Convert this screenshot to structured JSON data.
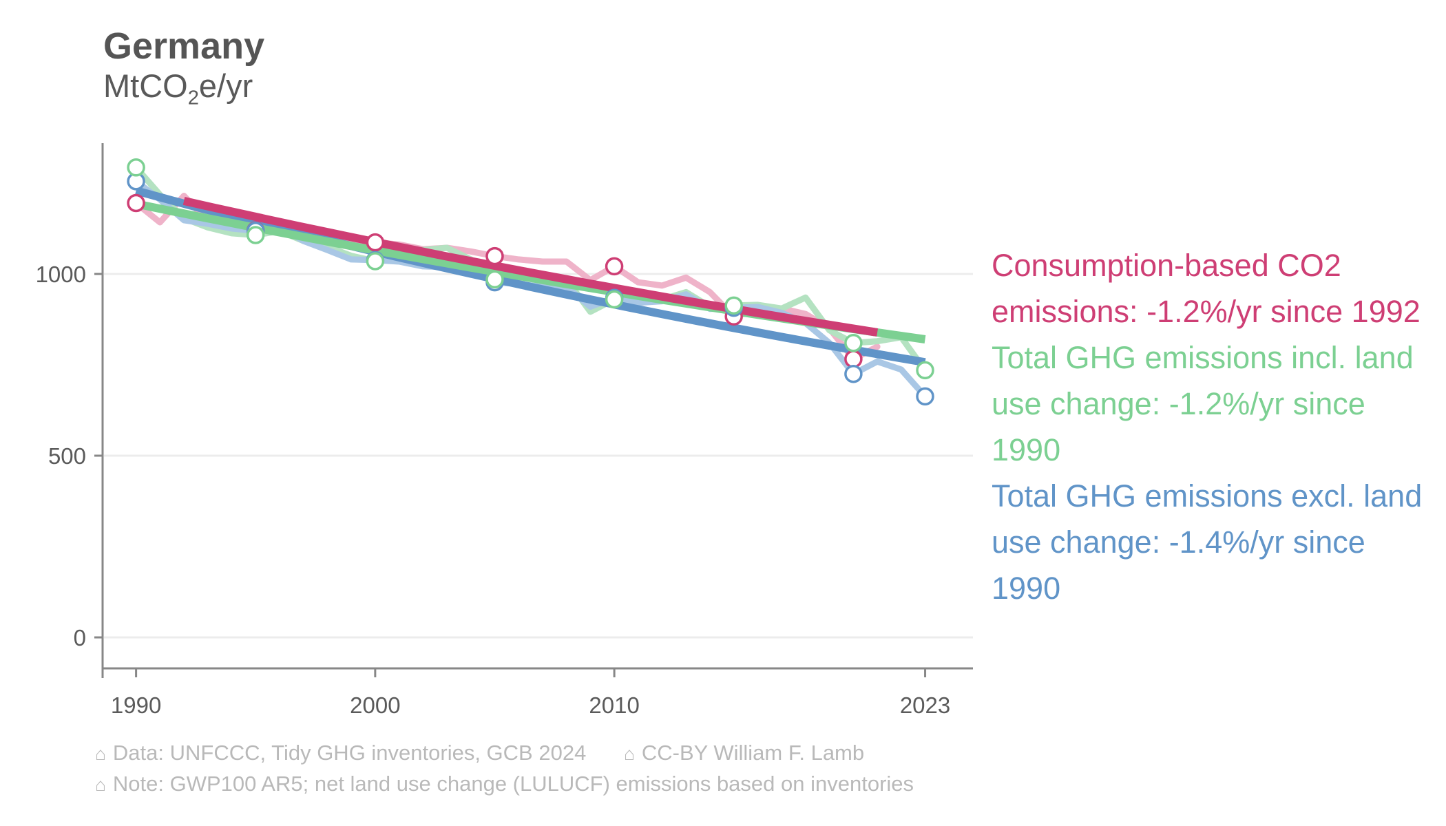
{
  "header": {
    "title": "Germany",
    "unit_main": "MtCO",
    "unit_sub": "2",
    "unit_tail": "e/yr"
  },
  "chart_data": {
    "type": "line",
    "title": "Germany",
    "ylabel": "MtCO2e/yr",
    "xlabel": "",
    "x_ticks": [
      1990,
      2000,
      2010,
      2023
    ],
    "y_ticks": [
      0,
      500,
      1000
    ],
    "xlim": [
      1988.6,
      2025.0
    ],
    "ylim": [
      0,
      1360
    ],
    "grid": "horizontal",
    "legend_position": "right",
    "series": [
      {
        "key": "consumption",
        "label": "Consumption-based CO2 emissions",
        "color": "#ce3e74",
        "light_color": "#efb3c9",
        "start_year": 1990,
        "end_year": 2021,
        "values": [
          1195,
          1142,
          1215,
          1145,
          1128,
          1120,
          1130,
          1106,
          1100,
          1086,
          1087,
          1081,
          1068,
          1072,
          1062,
          1049,
          1040,
          1034,
          1034,
          983,
          1021,
          977,
          968,
          990,
          950,
          883,
          900,
          905,
          890,
          850,
          766,
          800
        ],
        "marker_years": [
          1990,
          1995,
          2000,
          2005,
          2010,
          2015,
          2020
        ],
        "trend": {
          "start_year": 1992,
          "end_year": 2021,
          "start_value": 1201,
          "end_value": 839,
          "rate_label": "-1.2%/yr since 1992"
        }
      },
      {
        "key": "incl_luc",
        "label": "Total GHG emissions incl. land use change",
        "color": "#7cd092",
        "light_color": "#b4e2c1",
        "start_year": 1990,
        "end_year": 2023,
        "values": [
          1293,
          1218,
          1153,
          1128,
          1112,
          1107,
          1118,
          1091,
          1075,
          1050,
          1035,
          1055,
          1066,
          1072,
          1040,
          985,
          1010,
          992,
          985,
          896,
          930,
          920,
          930,
          950,
          910,
          913,
          915,
          905,
          935,
          845,
          810,
          815,
          826,
          735
        ],
        "marker_years": [
          1990,
          1995,
          2000,
          2005,
          2010,
          2015,
          2020,
          2023
        ],
        "trend": {
          "start_year": 1990,
          "end_year": 2023,
          "start_value": 1193,
          "end_value": 820,
          "rate_label": "-1.2%/yr since 1990"
        }
      },
      {
        "key": "excl_luc",
        "label": "Total GHG emissions excl. land use change",
        "color": "#6094c8",
        "light_color": "#a9c7e5",
        "start_year": 1990,
        "end_year": 2023,
        "values": [
          1255,
          1205,
          1148,
          1138,
          1125,
          1119,
          1130,
          1091,
          1066,
          1040,
          1038,
          1034,
          1021,
          1019,
          1011,
          977,
          973,
          964,
          964,
          910,
          934,
          921,
          925,
          944,
          904,
          907,
          909,
          893,
          865,
          810,
          725,
          759,
          737,
          663
        ],
        "marker_years": [
          1990,
          1995,
          2000,
          2005,
          2010,
          2015,
          2020,
          2023
        ],
        "trend": {
          "start_year": 1990,
          "end_year": 2023,
          "start_value": 1229,
          "end_value": 757,
          "rate_label": "-1.4%/yr since 1990"
        }
      }
    ]
  },
  "legend": {
    "items": [
      {
        "series_key": "consumption",
        "lines": [
          "Consumption-based CO2",
          "emissions: -1.2%/yr since 1992"
        ]
      },
      {
        "series_key": "incl_luc",
        "lines": [
          "Total GHG emissions incl. land",
          "use change: -1.2%/yr since",
          "1990"
        ]
      },
      {
        "series_key": "excl_luc",
        "lines": [
          "Total GHG emissions excl. land",
          "use change: -1.4%/yr since",
          "1990"
        ]
      }
    ]
  },
  "footer": {
    "house_glyph": "⌂",
    "line1_a": "Data: UNFCCC, Tidy GHG inventories, GCB 2024",
    "line1_b": "CC-BY William F. Lamb",
    "line2": "Note: GWP100 AR5; net land use change (LULUCF) emissions based on inventories"
  },
  "style_colors": {
    "title_text": "#555555",
    "axis_line": "#878787",
    "axis_text": "#5a5a5a",
    "gridline": "#ececec",
    "footer_text": "#b9b9b9",
    "marker_fill": "#ffffff"
  }
}
